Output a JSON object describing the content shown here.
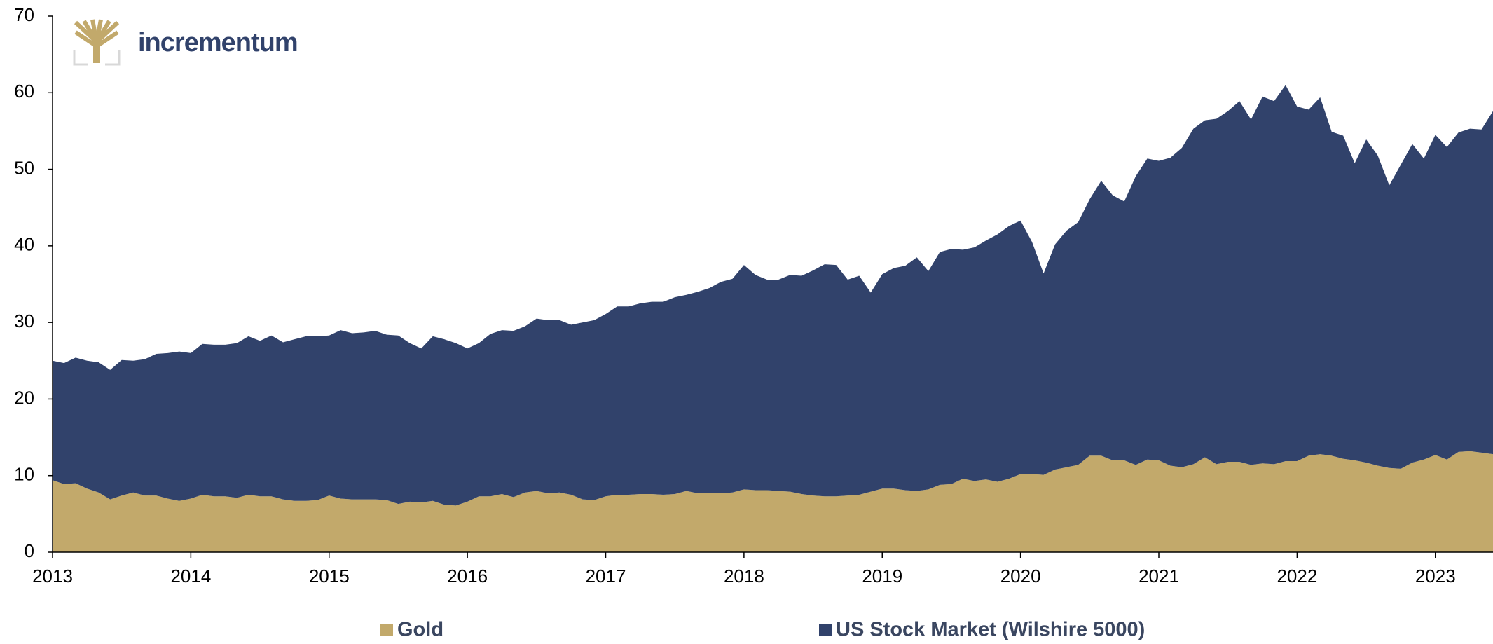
{
  "logo": "incrementum",
  "chart_data": {
    "type": "stacked_area",
    "categories": [
      "2013",
      null,
      null,
      null,
      null,
      null,
      null,
      null,
      null,
      null,
      null,
      null,
      "2014",
      null,
      null,
      null,
      null,
      null,
      null,
      null,
      null,
      null,
      null,
      null,
      "2015",
      null,
      null,
      null,
      null,
      null,
      null,
      null,
      null,
      null,
      null,
      null,
      "2016",
      null,
      null,
      null,
      null,
      null,
      null,
      null,
      null,
      null,
      null,
      null,
      "2017",
      null,
      null,
      null,
      null,
      null,
      null,
      null,
      null,
      null,
      null,
      null,
      "2018",
      null,
      null,
      null,
      null,
      null,
      null,
      null,
      null,
      null,
      null,
      null,
      "2019",
      null,
      null,
      null,
      null,
      null,
      null,
      null,
      null,
      null,
      null,
      null,
      "2020",
      null,
      null,
      null,
      null,
      null,
      null,
      null,
      null,
      null,
      null,
      null,
      "2021",
      null,
      null,
      null,
      null,
      null,
      null,
      null,
      null,
      null,
      null,
      null,
      "2022",
      null,
      null,
      null,
      null,
      null,
      null,
      null,
      null,
      null,
      null,
      null,
      "2023",
      null,
      null,
      null,
      null,
      null
    ],
    "series": [
      {
        "name": "Gold",
        "color": "#c2a96b",
        "values": [
          9.4,
          8.9,
          9,
          8.3,
          7.8,
          6.9,
          7.4,
          7.8,
          7.4,
          7.4,
          7,
          6.7,
          7,
          7.5,
          7.3,
          7.3,
          7.1,
          7.5,
          7.3,
          7.3,
          6.9,
          6.7,
          6.7,
          6.8,
          7.4,
          7,
          6.9,
          6.9,
          6.9,
          6.8,
          6.3,
          6.6,
          6.5,
          6.7,
          6.2,
          6.1,
          6.6,
          7.3,
          7.3,
          7.6,
          7.2,
          7.8,
          8,
          7.7,
          7.8,
          7.5,
          6.9,
          6.8,
          7.3,
          7.5,
          7.5,
          7.6,
          7.6,
          7.5,
          7.6,
          8,
          7.7,
          7.7,
          7.7,
          7.8,
          8.2,
          8.1,
          8.1,
          8,
          7.9,
          7.6,
          7.4,
          7.3,
          7.3,
          7.4,
          7.5,
          7.9,
          8.3,
          8.3,
          8.1,
          8,
          8.2,
          8.8,
          8.9,
          9.6,
          9.3,
          9.5,
          9.2,
          9.6,
          10.2,
          10.2,
          10.1,
          10.8,
          11.1,
          11.4,
          12.6,
          12.6,
          12,
          12,
          11.4,
          12.1,
          12,
          11.3,
          11.1,
          11.5,
          12.4,
          11.5,
          11.8,
          11.8,
          11.4,
          11.6,
          11.5,
          11.9,
          11.9,
          12.6,
          12.8,
          12.6,
          12.2,
          12,
          11.7,
          11.3,
          11,
          10.9,
          11.7,
          12.1,
          12.7,
          12.1,
          13.1,
          13.2,
          13,
          12.8
        ]
      },
      {
        "name": "US Stock Market (Wilshire 5000)",
        "color": "#31426b",
        "values": [
          15.6,
          15.8,
          16.4,
          16.7,
          17,
          16.9,
          17.7,
          17.2,
          17.8,
          18.5,
          19,
          19.5,
          19,
          19.7,
          19.8,
          19.8,
          20.2,
          20.7,
          20.3,
          21,
          20.5,
          21.1,
          21.5,
          21.4,
          20.9,
          22,
          21.7,
          21.8,
          22,
          21.6,
          22,
          20.7,
          20.1,
          21.5,
          21.6,
          21.2,
          20,
          20,
          21.2,
          21.4,
          21.7,
          21.7,
          22.5,
          22.6,
          22.5,
          22.2,
          23.1,
          23.5,
          23.8,
          24.6,
          24.6,
          24.9,
          25.1,
          25.2,
          25.7,
          25.6,
          26.3,
          26.8,
          27.6,
          27.9,
          29.3,
          28.1,
          27.5,
          27.6,
          28.3,
          28.5,
          29.4,
          30.3,
          30.2,
          28.2,
          28.6,
          26,
          28,
          28.8,
          29.3,
          30.5,
          28.5,
          30.4,
          30.7,
          29.9,
          30.5,
          31.2,
          32.3,
          33,
          33.1,
          30.3,
          26.3,
          29.4,
          30.9,
          31.7,
          33.5,
          35.9,
          34.6,
          33.8,
          37.7,
          39.3,
          39.1,
          40.2,
          41.7,
          43.8,
          44,
          45.1,
          45.8,
          47.1,
          45.1,
          47.9,
          47.4,
          49.1,
          46.3,
          45.2,
          46.6,
          42.3,
          42.2,
          38.8,
          42.2,
          40.5,
          36.9,
          39.7,
          41.6,
          39.3,
          41.8,
          40.8,
          41.7,
          42.1,
          42.2,
          44.8
        ]
      }
    ],
    "ylim": [
      0,
      70
    ],
    "yticks": [
      0,
      10,
      20,
      30,
      40,
      50,
      60,
      70
    ],
    "grid": false,
    "legend": "bottom"
  }
}
